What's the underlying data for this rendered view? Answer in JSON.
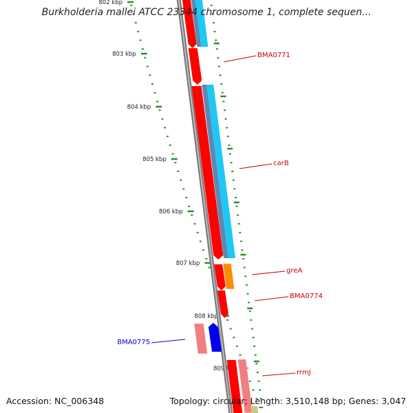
{
  "header": {
    "title": "Burkholderia mallei ATCC 23344 chromosome 1, complete sequen..."
  },
  "footer": {
    "accession": "Accession: NC_006348",
    "summary": "Topology: circular; Length: 3,510,148 bp; Genes: 3,047"
  },
  "colors": {
    "backbone": "#888888",
    "tick": "#2e8b2e",
    "gene_forward": "#ff0000",
    "gene_pale": "#f08080",
    "gene_blue": "#0000ee",
    "cds_cyan": "#1ec8f5",
    "cds_steel": "#5a8ab4",
    "orange": "#ff8c00",
    "olive": "#c8c88c",
    "label_red": "#cc0000",
    "label_blue": "#0000cc"
  },
  "scale": {
    "unit": "kbp",
    "ticks": [
      {
        "label": "802 kbp"
      },
      {
        "label": "803 kbp"
      },
      {
        "label": "804 kbp"
      },
      {
        "label": "805 kbp"
      },
      {
        "label": "806 kbp"
      },
      {
        "label": "807 kbp"
      },
      {
        "label": "808 kbp"
      },
      {
        "label": "809 kbp"
      }
    ]
  },
  "genes": [
    {
      "name": "BMA0771",
      "color": "#cc0000"
    },
    {
      "name": "carB",
      "color": "#cc0000"
    },
    {
      "name": "greA",
      "color": "#cc0000"
    },
    {
      "name": "BMA0774",
      "color": "#cc0000"
    },
    {
      "name": "BMA0775",
      "color": "#0000cc"
    },
    {
      "name": "rrmJ",
      "color": "#cc0000"
    }
  ]
}
